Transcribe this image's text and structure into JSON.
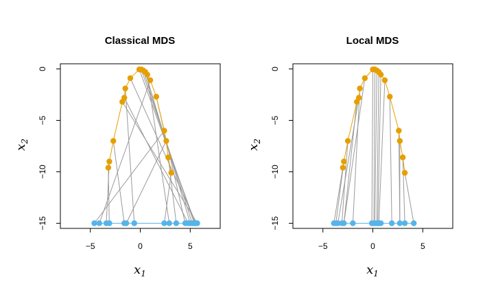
{
  "chart_data": [
    {
      "type": "scatter",
      "title": "Classical MDS",
      "xlabel": "x",
      "xlabel_sub": "1",
      "ylabel": "x",
      "ylabel_sub": "2",
      "xlim": [
        -8,
        8
      ],
      "ylim": [
        -15.5,
        0.5
      ],
      "xticks": [
        -5,
        0,
        5
      ],
      "yticks": [
        0,
        -5,
        -10,
        -15
      ],
      "grid": false,
      "colors": {
        "upper": "#e69f00",
        "lower": "#56b4e9",
        "connector": "#999999"
      },
      "series": [
        {
          "role": "upper",
          "x": [
            -3.2,
            -3.1,
            -2.7,
            -1.8,
            -1.6,
            -1.5,
            -1.0,
            -0.1,
            0.1,
            0.3,
            0.5,
            0.7,
            1.0,
            1.6,
            2.4,
            2.6,
            2.8,
            3.1
          ],
          "y": [
            -9.6,
            -9.0,
            -7.0,
            -3.2,
            -2.8,
            -1.9,
            -0.9,
            -0.05,
            -0.05,
            -0.15,
            -0.3,
            -0.55,
            -1.1,
            -2.7,
            -6.0,
            -7.0,
            -8.6,
            -10.1
          ]
        },
        {
          "role": "lower",
          "x": [
            -4.6,
            -4.1,
            -3.4,
            -3.1,
            -1.6,
            -1.4,
            -0.6,
            2.4,
            2.9,
            3.6,
            4.5,
            4.8,
            5.0,
            5.2,
            5.4,
            5.5,
            5.6,
            5.7
          ],
          "y": [
            -15,
            -15,
            -15,
            -15,
            -15,
            -15,
            -15,
            -15,
            -15,
            -15,
            -15,
            -15,
            -15,
            -15,
            -15,
            -15,
            -15,
            -15
          ]
        }
      ],
      "links": [
        [
          0,
          3
        ],
        [
          1,
          2
        ],
        [
          2,
          4
        ],
        [
          3,
          17
        ],
        [
          4,
          11
        ],
        [
          5,
          6
        ],
        [
          6,
          16
        ],
        [
          7,
          15
        ],
        [
          8,
          14
        ],
        [
          9,
          13
        ],
        [
          10,
          12
        ],
        [
          11,
          8
        ],
        [
          12,
          1
        ],
        [
          13,
          10
        ],
        [
          14,
          0
        ],
        [
          15,
          5
        ],
        [
          16,
          9
        ],
        [
          17,
          7
        ]
      ]
    },
    {
      "type": "scatter",
      "title": "Local MDS",
      "xlabel": "x",
      "xlabel_sub": "1",
      "ylabel": "x",
      "ylabel_sub": "2",
      "xlim": [
        -8,
        8
      ],
      "ylim": [
        -15.5,
        0.5
      ],
      "xticks": [
        -5,
        0,
        5
      ],
      "yticks": [
        0,
        -5,
        -10,
        -15
      ],
      "grid": false,
      "colors": {
        "upper": "#e69f00",
        "lower": "#56b4e9",
        "connector": "#999999"
      },
      "series": [
        {
          "role": "upper",
          "x": [
            -3.0,
            -2.9,
            -2.5,
            -1.6,
            -1.4,
            -1.3,
            -0.8,
            0.0,
            0.2,
            0.4,
            0.6,
            0.8,
            1.2,
            1.7,
            2.6,
            2.7,
            3.0,
            3.2
          ],
          "y": [
            -9.6,
            -9.0,
            -7.0,
            -3.2,
            -2.8,
            -1.9,
            -0.9,
            -0.05,
            -0.05,
            -0.15,
            -0.3,
            -0.55,
            -1.1,
            -2.7,
            -6.0,
            -7.0,
            -8.6,
            -10.1
          ]
        },
        {
          "role": "lower",
          "x": [
            -3.9,
            -3.7,
            -3.5,
            -3.1,
            -2.9,
            -2.0,
            -0.1,
            0.1,
            0.2,
            0.4,
            0.5,
            0.6,
            0.8,
            1.9,
            2.7,
            3.2,
            4.1
          ],
          "y": [
            -15,
            -15,
            -15,
            -15,
            -15,
            -15,
            -15,
            -15,
            -15,
            -15,
            -15,
            -15,
            -15,
            -15,
            -15,
            -15,
            -15
          ]
        }
      ],
      "links": [
        [
          0,
          0
        ],
        [
          1,
          1
        ],
        [
          2,
          3
        ],
        [
          3,
          4
        ],
        [
          4,
          2
        ],
        [
          5,
          5
        ],
        [
          6,
          4
        ],
        [
          7,
          6
        ],
        [
          8,
          7
        ],
        [
          9,
          8
        ],
        [
          10,
          9
        ],
        [
          11,
          10
        ],
        [
          12,
          11
        ],
        [
          13,
          13
        ],
        [
          14,
          14
        ],
        [
          15,
          14
        ],
        [
          16,
          15
        ],
        [
          17,
          16
        ]
      ]
    }
  ]
}
